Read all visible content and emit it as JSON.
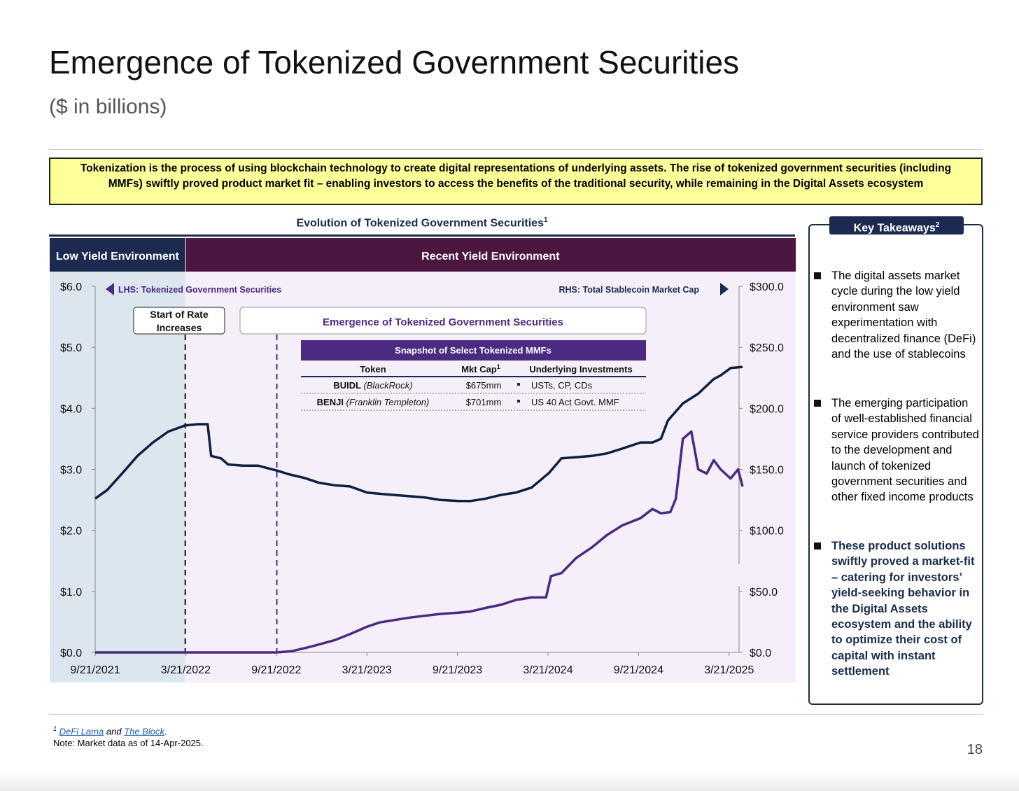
{
  "page": {
    "title": "Emergence of Tokenized Government Securities",
    "subtitle": "($ in billions)",
    "banner": "Tokenization is the process of using blockchain technology to create digital representations of underlying assets. The rise of tokenized government securities (including MMFs) swiftly proved product market fit – enabling investors to access the benefits of the traditional security, while remaining in the Digital Assets ecosystem",
    "page_number": "18"
  },
  "chart_title": "Evolution of Tokenized Government Securities",
  "chart_title_sup": "1",
  "phases": {
    "low": "Low Yield Environment",
    "recent": "Recent Yield Environment"
  },
  "annotations": {
    "lhs": "LHS: Tokenized Government Securities",
    "rhs": "RHS: Total Stablecoin Market Cap",
    "rate_start": "Start of Rate Increases",
    "emergence": "Emergence of Tokenized Government Securities"
  },
  "snapshot": {
    "title": "Snapshot of Select Tokenized MMFs",
    "headers": [
      "Token",
      "Mkt Cap",
      "Underlying Investments"
    ],
    "mktcap_sup": "1",
    "rows": [
      {
        "token": "BUIDL",
        "issuer": "(BlackRock)",
        "mktcap": "$675mm",
        "investments": "USTs, CP, CDs"
      },
      {
        "token": "BENJI",
        "issuer": "(Franklin Templeton)",
        "mktcap": "$701mm",
        "investments": "US 40 Act Govt. MMF"
      }
    ]
  },
  "legend": [
    "Stablecoins",
    "Tokenized Government Securities"
  ],
  "takeaways": {
    "title": "Key Takeaways",
    "title_sup": "2",
    "items": [
      "The digital assets market cycle during the low yield environment saw experimentation with decentralized finance (DeFi) and the use of stablecoins",
      "The emerging participation of well-established financial service providers contributed to the development and launch of tokenized government securities and other fixed income products",
      "These product solutions swiftly proved a market-fit – catering for investors’ yield-seeking behavior in the Digital Assets ecosystem and the ability to optimize their cost of capital with instant settlement"
    ]
  },
  "footnotes": {
    "sup": "1",
    "link1": "DeFi Lama",
    "and": "and",
    "link2": "The Block",
    "period": ".",
    "note": "Note: Market data as of 14-Apr-2025."
  },
  "colors": {
    "stablecoins": "#0f2040",
    "tokenized": "#4b2a82",
    "low_band": "#dce6ef",
    "recent_band": "#f5effa",
    "low_header": "#1b2a4e",
    "recent_header": "#4b1640",
    "snapshot_header": "#4b2a82"
  },
  "chart_data": {
    "type": "line",
    "x_ticks": [
      "9/21/2021",
      "3/21/2022",
      "9/21/2022",
      "3/21/2023",
      "9/21/2023",
      "3/21/2024",
      "9/21/2024",
      "3/21/2025"
    ],
    "y_left": {
      "ticks": [
        "$0.0",
        "$1.0",
        "$2.0",
        "$3.0",
        "$4.0",
        "$5.0",
        "$6.0"
      ],
      "range": [
        0,
        6
      ]
    },
    "y_right": {
      "ticks": [
        "$0.0",
        "$50.0",
        "$100.0",
        "$150.0",
        "$200.0",
        "$250.0",
        "$300.0"
      ],
      "range": [
        0,
        300
      ]
    },
    "series": [
      {
        "name": "Stablecoins",
        "axis": "right",
        "points": [
          [
            "2021-09-21",
            126
          ],
          [
            "2021-10-15",
            133
          ],
          [
            "2021-11-15",
            147
          ],
          [
            "2021-12-15",
            161
          ],
          [
            "2022-01-15",
            172
          ],
          [
            "2022-02-15",
            181
          ],
          [
            "2022-03-21",
            186
          ],
          [
            "2022-04-15",
            187
          ],
          [
            "2022-05-05",
            187
          ],
          [
            "2022-05-12",
            161
          ],
          [
            "2022-06-01",
            159
          ],
          [
            "2022-06-15",
            154
          ],
          [
            "2022-07-15",
            153
          ],
          [
            "2022-08-15",
            153
          ],
          [
            "2022-09-21",
            149
          ],
          [
            "2022-10-15",
            146
          ],
          [
            "2022-11-15",
            143
          ],
          [
            "2022-12-15",
            139
          ],
          [
            "2023-01-15",
            137
          ],
          [
            "2023-02-15",
            136
          ],
          [
            "2023-03-21",
            131
          ],
          [
            "2023-04-15",
            130
          ],
          [
            "2023-05-15",
            129
          ],
          [
            "2023-06-15",
            128
          ],
          [
            "2023-07-15",
            127
          ],
          [
            "2023-08-15",
            125
          ],
          [
            "2023-09-21",
            124
          ],
          [
            "2023-10-15",
            124
          ],
          [
            "2023-11-15",
            126
          ],
          [
            "2023-12-15",
            129
          ],
          [
            "2024-01-15",
            131
          ],
          [
            "2024-02-15",
            135
          ],
          [
            "2024-03-21",
            147
          ],
          [
            "2024-04-15",
            159
          ],
          [
            "2024-05-15",
            160
          ],
          [
            "2024-06-15",
            161
          ],
          [
            "2024-07-15",
            163
          ],
          [
            "2024-08-15",
            167
          ],
          [
            "2024-09-21",
            172
          ],
          [
            "2024-10-15",
            172
          ],
          [
            "2024-11-01",
            175
          ],
          [
            "2024-11-15",
            190
          ],
          [
            "2024-12-15",
            204
          ],
          [
            "2025-01-15",
            212
          ],
          [
            "2025-02-15",
            224
          ],
          [
            "2025-03-01",
            227
          ],
          [
            "2025-03-21",
            233
          ],
          [
            "2025-04-14",
            234
          ]
        ]
      },
      {
        "name": "Tokenized Government Securities",
        "axis": "left",
        "points": [
          [
            "2021-09-21",
            0.0
          ],
          [
            "2022-09-21",
            0.0
          ],
          [
            "2022-10-21",
            0.02
          ],
          [
            "2022-12-01",
            0.1
          ],
          [
            "2023-01-15",
            0.2
          ],
          [
            "2023-02-15",
            0.3
          ],
          [
            "2023-03-21",
            0.42
          ],
          [
            "2023-04-15",
            0.49
          ],
          [
            "2023-05-15",
            0.53
          ],
          [
            "2023-06-15",
            0.57
          ],
          [
            "2023-07-15",
            0.6
          ],
          [
            "2023-08-15",
            0.63
          ],
          [
            "2023-09-21",
            0.65
          ],
          [
            "2023-10-15",
            0.67
          ],
          [
            "2023-11-15",
            0.73
          ],
          [
            "2023-12-15",
            0.78
          ],
          [
            "2024-01-15",
            0.86
          ],
          [
            "2024-02-15",
            0.9
          ],
          [
            "2024-03-15",
            0.9
          ],
          [
            "2024-03-25",
            1.25
          ],
          [
            "2024-04-15",
            1.3
          ],
          [
            "2024-05-15",
            1.55
          ],
          [
            "2024-06-15",
            1.72
          ],
          [
            "2024-07-15",
            1.92
          ],
          [
            "2024-08-15",
            2.08
          ],
          [
            "2024-09-21",
            2.2
          ],
          [
            "2024-10-15",
            2.35
          ],
          [
            "2024-11-01",
            2.28
          ],
          [
            "2024-11-20",
            2.3
          ],
          [
            "2024-12-01",
            2.52
          ],
          [
            "2024-12-15",
            3.5
          ],
          [
            "2025-01-01",
            3.62
          ],
          [
            "2025-01-15",
            3.0
          ],
          [
            "2025-02-01",
            2.93
          ],
          [
            "2025-02-15",
            3.15
          ],
          [
            "2025-03-01",
            3.0
          ],
          [
            "2025-03-21",
            2.85
          ],
          [
            "2025-04-05",
            3.0
          ],
          [
            "2025-04-14",
            2.72
          ]
        ]
      }
    ],
    "events": [
      {
        "label": "Start of Rate Increases",
        "x": "2022-03-21"
      },
      {
        "label": "Emergence of Tokenized Government Securities",
        "x": "2022-09-21"
      }
    ]
  }
}
